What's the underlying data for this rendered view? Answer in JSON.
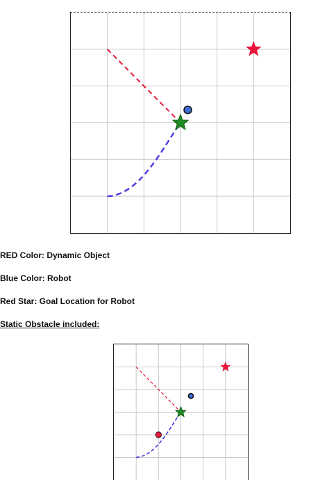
{
  "legend": {
    "red": "RED Color: Dynamic Object",
    "blue": "Blue Color: Robot",
    "star": "Red Star: Goal Location for Robot",
    "static": "Static Obstacle included:"
  },
  "colors": {
    "dynamic_path": "#e8163c",
    "robot_path": "#4b3ee0",
    "robot": "#3f6fd6",
    "goal_star": "#e8163c",
    "collision_star": "#1f8a22",
    "obstacle": "#e8163c",
    "grid": "#c8c8c8"
  },
  "diagrams": [
    {
      "grid": {
        "cols": 6,
        "rows": 6
      },
      "dynamic_path": [
        [
          1,
          5
        ],
        [
          3,
          3
        ]
      ],
      "robot_path": [
        [
          1,
          1
        ],
        [
          3,
          3
        ]
      ],
      "robot": [
        3.2,
        3.35
      ],
      "goal": [
        5,
        5
      ],
      "meeting_point": [
        3,
        3
      ],
      "obstacle": null
    },
    {
      "grid": {
        "cols": 6,
        "rows": 6
      },
      "dynamic_path": [
        [
          1,
          5
        ],
        [
          3,
          3
        ]
      ],
      "robot_path": [
        [
          1,
          1
        ],
        [
          3,
          3
        ]
      ],
      "robot": [
        3.45,
        3.72
      ],
      "goal": [
        5,
        5
      ],
      "meeting_point": [
        3,
        3
      ],
      "obstacle": [
        2,
        2
      ]
    }
  ]
}
